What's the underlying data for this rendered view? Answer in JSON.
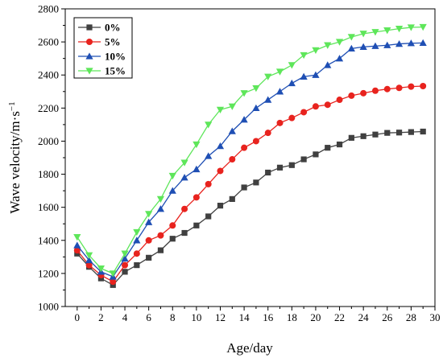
{
  "chart_data": {
    "type": "line",
    "xlabel": "Age/day",
    "ylabel": "Wave velocity/m·s",
    "ylabel_superscript": "−1",
    "xlim": [
      -1,
      30
    ],
    "ylim": [
      1000,
      2800
    ],
    "xticks": [
      0,
      2,
      4,
      6,
      8,
      10,
      12,
      14,
      16,
      18,
      20,
      22,
      24,
      26,
      28,
      30
    ],
    "yticks": [
      1000,
      1200,
      1400,
      1600,
      1800,
      2000,
      2200,
      2400,
      2600,
      2800
    ],
    "grid": false,
    "legend_position": "top-left",
    "x": [
      0,
      1,
      2,
      3,
      4,
      5,
      6,
      7,
      8,
      9,
      10,
      11,
      12,
      13,
      14,
      15,
      16,
      17,
      18,
      19,
      20,
      21,
      22,
      23,
      24,
      25,
      26,
      27,
      28,
      29
    ],
    "series": [
      {
        "name": "0%",
        "color": "#404040",
        "marker": "square",
        "values": [
          1320,
          1240,
          1170,
          1130,
          1210,
          1250,
          1295,
          1340,
          1410,
          1445,
          1490,
          1545,
          1610,
          1650,
          1720,
          1750,
          1810,
          1840,
          1855,
          1890,
          1920,
          1960,
          1980,
          2020,
          2030,
          2040,
          2050,
          2052,
          2055,
          2058
        ]
      },
      {
        "name": "5%",
        "color": "#e8231e",
        "marker": "circle",
        "values": [
          1340,
          1250,
          1190,
          1150,
          1250,
          1320,
          1400,
          1430,
          1490,
          1590,
          1660,
          1740,
          1820,
          1890,
          1960,
          2000,
          2050,
          2110,
          2140,
          2175,
          2210,
          2220,
          2250,
          2275,
          2290,
          2305,
          2315,
          2322,
          2330,
          2333
        ]
      },
      {
        "name": "10%",
        "color": "#1f4fb4",
        "marker": "triangle-up",
        "values": [
          1370,
          1280,
          1210,
          1180,
          1290,
          1400,
          1510,
          1590,
          1700,
          1780,
          1830,
          1910,
          1970,
          2060,
          2130,
          2200,
          2250,
          2300,
          2350,
          2390,
          2400,
          2460,
          2500,
          2560,
          2570,
          2575,
          2580,
          2588,
          2592,
          2594
        ]
      },
      {
        "name": "15%",
        "color": "#5ee65a",
        "marker": "triangle-down",
        "values": [
          1420,
          1310,
          1230,
          1200,
          1320,
          1450,
          1560,
          1650,
          1790,
          1870,
          1980,
          2100,
          2190,
          2210,
          2290,
          2320,
          2390,
          2420,
          2460,
          2520,
          2550,
          2580,
          2600,
          2630,
          2650,
          2660,
          2670,
          2680,
          2688,
          2690
        ]
      }
    ]
  }
}
